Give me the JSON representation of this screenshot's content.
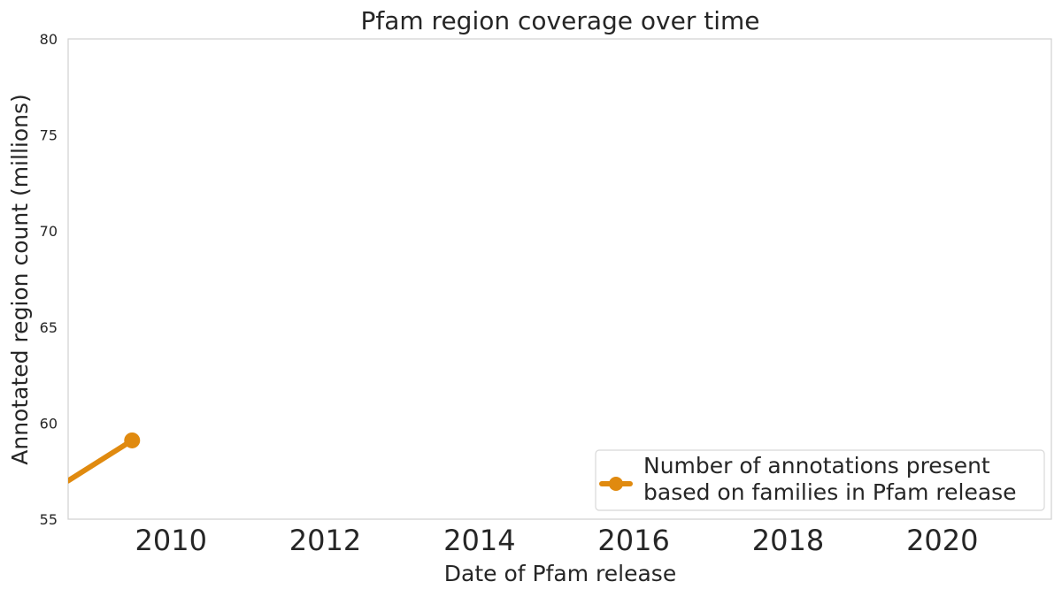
{
  "chart_data": {
    "type": "line",
    "title": "Pfam region coverage over time",
    "xlabel": "Date of Pfam release",
    "ylabel": "Annotated region count (millions)",
    "xlim": [
      "2008-09-01",
      "2021-06-01"
    ],
    "ylim": [
      55,
      80
    ],
    "grid": false,
    "yticks": [
      55,
      60,
      65,
      70,
      75,
      80
    ],
    "xticks": [
      "2010",
      "2012",
      "2014",
      "2016",
      "2018",
      "2020"
    ],
    "legend_position": "bottom-right",
    "series": [
      {
        "name": "Number of annotations present\nbased on families in Pfam release",
        "color": "#e08a0f",
        "points": [
          {
            "x": "2008-09-01",
            "y": 57.0
          },
          {
            "x": "2009-07-01",
            "y": 59.1
          }
        ]
      }
    ]
  }
}
